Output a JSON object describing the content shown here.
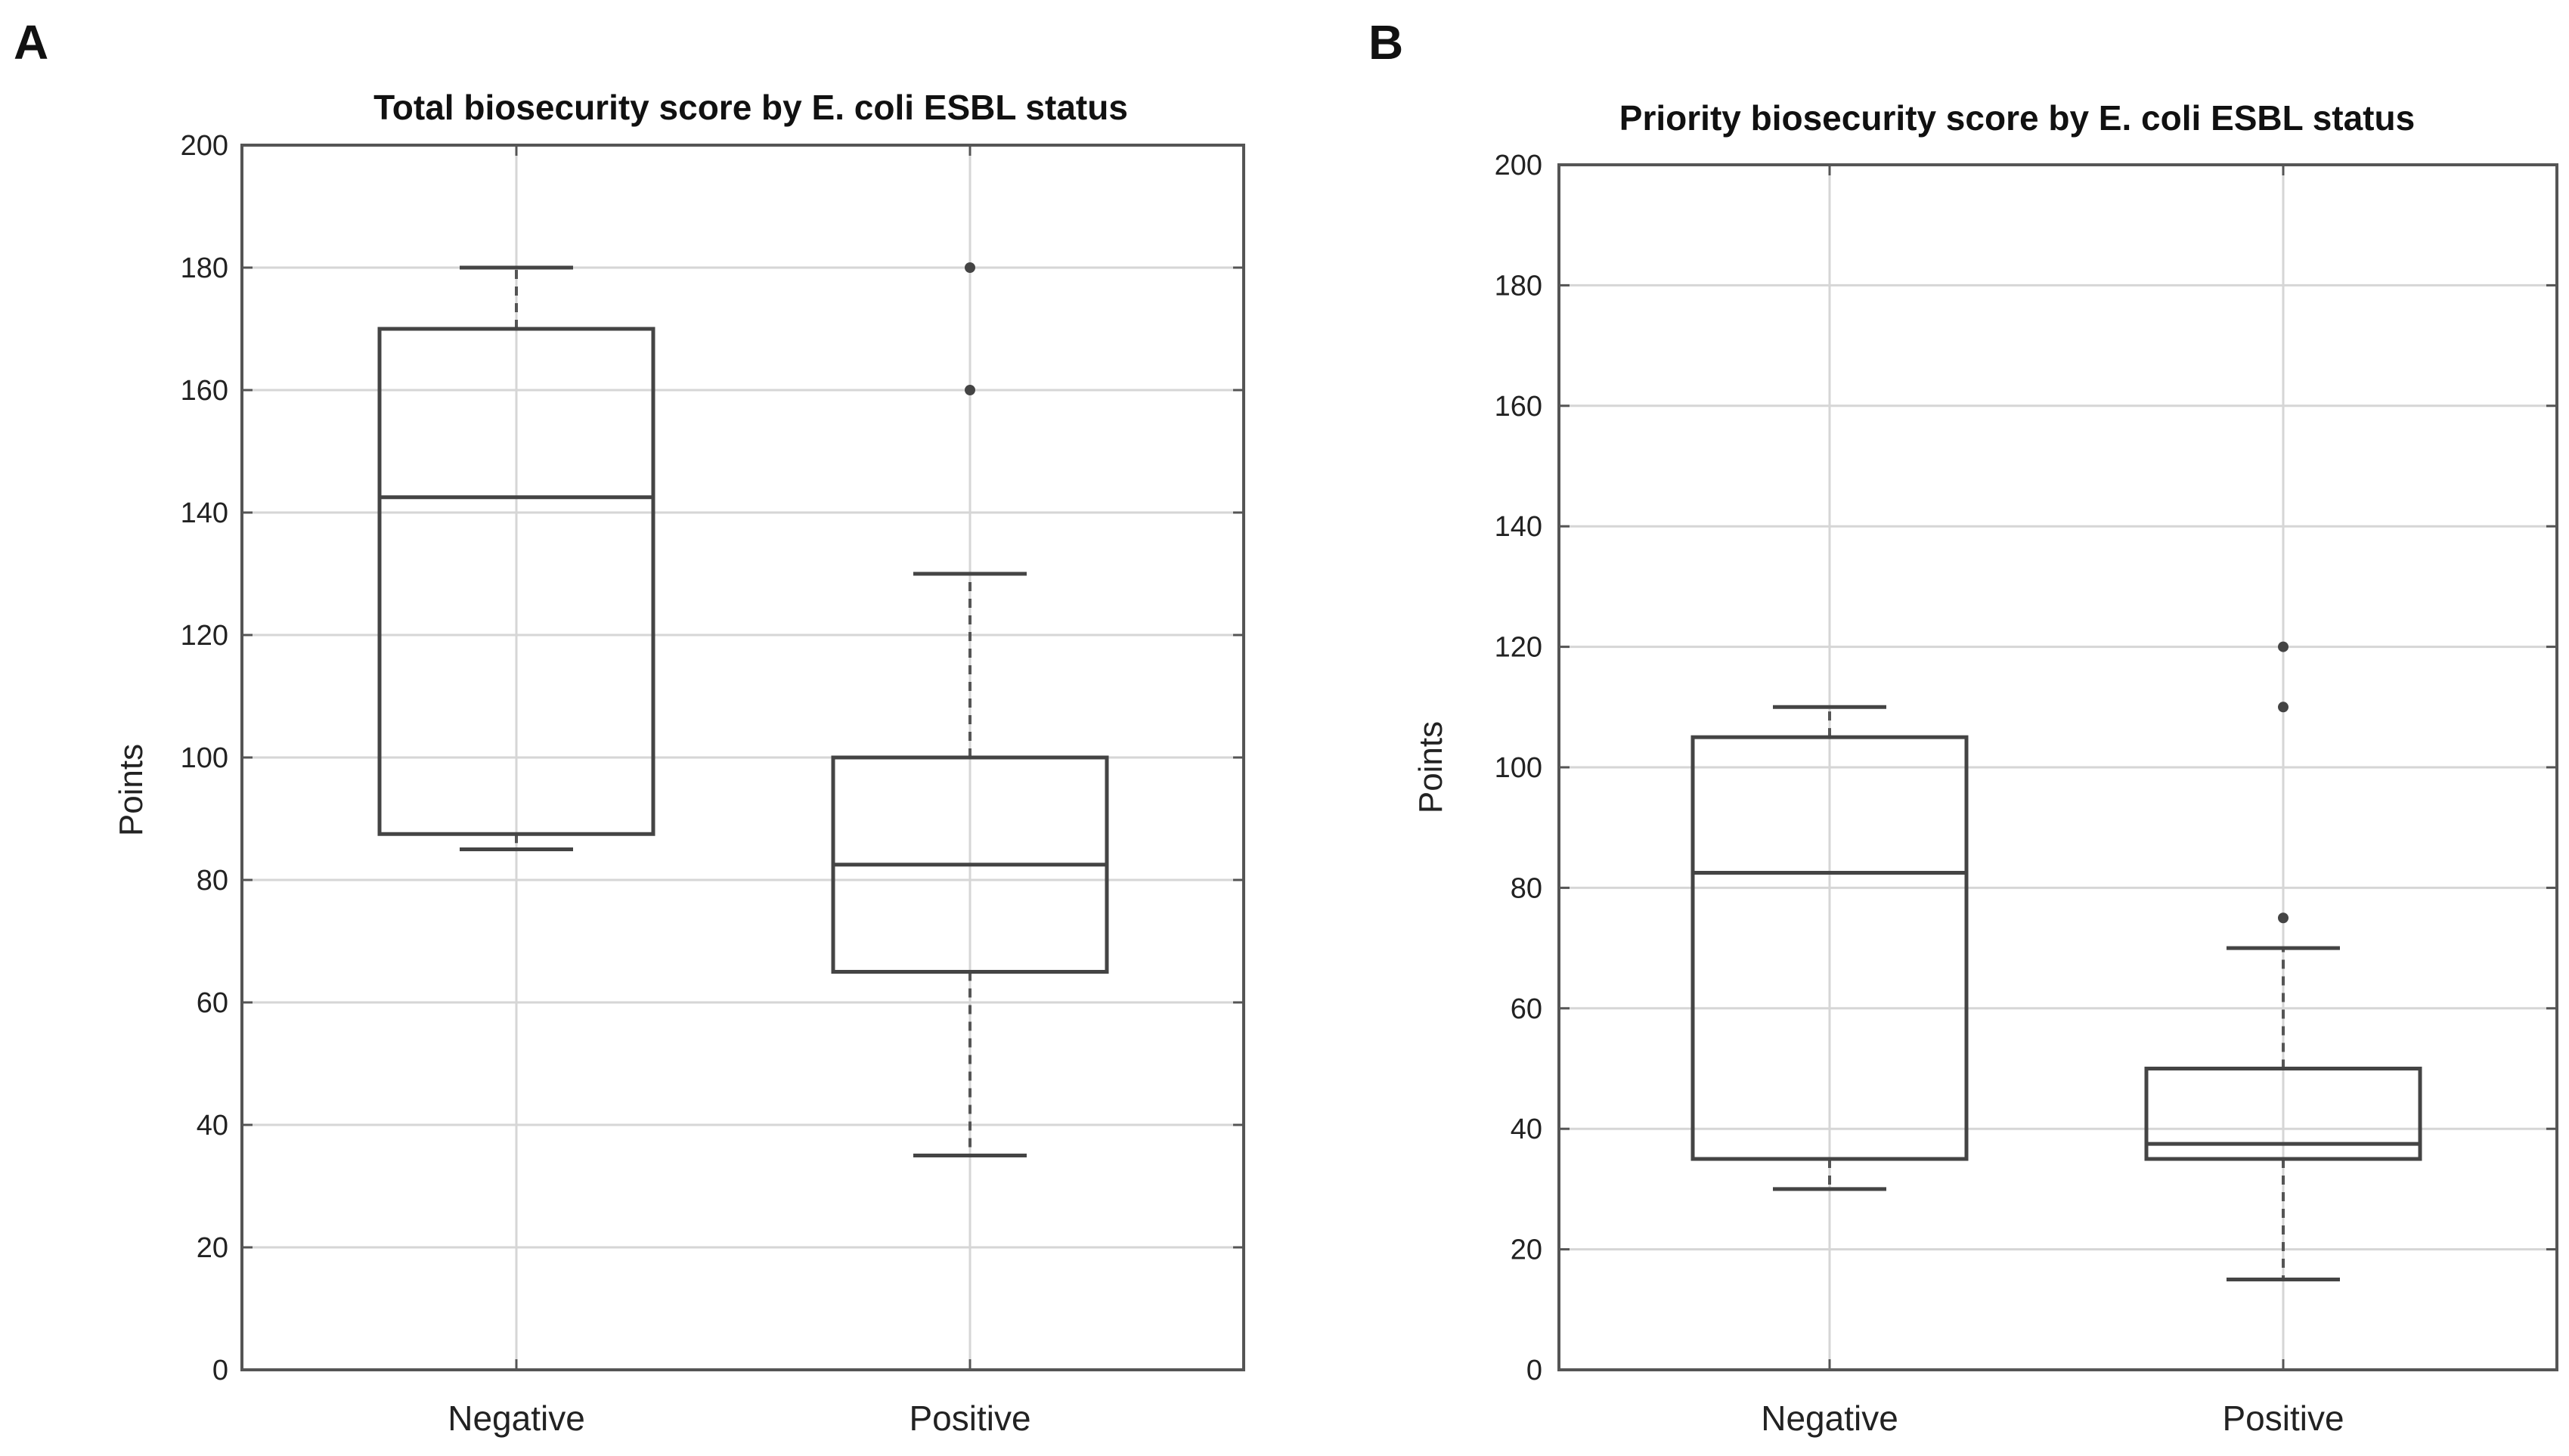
{
  "chart_data": [
    {
      "panel": "A",
      "type": "box",
      "title": "Total biosecurity score by E. coli ESBL status",
      "ylabel": "Points",
      "xlabel": "",
      "ylim": [
        0,
        200
      ],
      "yticks": [
        0,
        20,
        40,
        60,
        80,
        100,
        120,
        140,
        160,
        180,
        200
      ],
      "grid": true,
      "categories": [
        "Negative",
        "Positive"
      ],
      "boxes": [
        {
          "name": "Negative",
          "whisker_low": 85,
          "q1": 87.5,
          "median": 142.5,
          "q3": 170,
          "whisker_high": 180,
          "outliers": []
        },
        {
          "name": "Positive",
          "whisker_low": 35,
          "q1": 65,
          "median": 82.5,
          "q3": 100,
          "whisker_high": 130,
          "outliers": [
            160,
            180
          ]
        }
      ]
    },
    {
      "panel": "B",
      "type": "box",
      "title": "Priority biosecurity score by E. coli ESBL status",
      "ylabel": "Points",
      "xlabel": "",
      "ylim": [
        0,
        200
      ],
      "yticks": [
        0,
        20,
        40,
        60,
        80,
        100,
        120,
        140,
        160,
        180,
        200
      ],
      "grid": true,
      "categories": [
        "Negative",
        "Positive"
      ],
      "boxes": [
        {
          "name": "Negative",
          "whisker_low": 30,
          "q1": 35,
          "median": 82.5,
          "q3": 105,
          "whisker_high": 110,
          "outliers": []
        },
        {
          "name": "Positive",
          "whisker_low": 15,
          "q1": 35,
          "median": 37.5,
          "q3": 50,
          "whisker_high": 70,
          "outliers": [
            75,
            110,
            120
          ]
        }
      ]
    }
  ]
}
